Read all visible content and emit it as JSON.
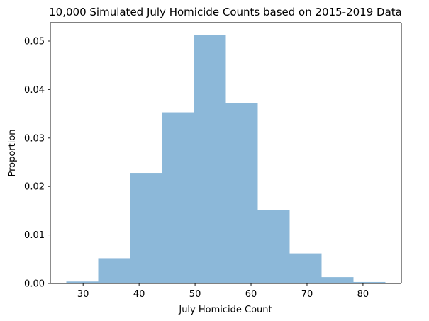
{
  "chart_data": {
    "type": "bar",
    "subtype": "histogram",
    "title": "10,000 Simulated July Homicide Counts based on 2015-2019 Data",
    "xlabel": "July Homicide Count",
    "ylabel": "Proportion",
    "bin_edges": [
      27.0,
      32.7,
      38.4,
      44.1,
      49.8,
      55.5,
      61.2,
      66.9,
      72.6,
      78.3,
      84.0
    ],
    "values": [
      0.0004,
      0.0052,
      0.0228,
      0.0353,
      0.0512,
      0.0372,
      0.0152,
      0.0062,
      0.0013,
      0.0003
    ],
    "xlim": [
      24.15,
      86.85
    ],
    "ylim": [
      0,
      0.0538
    ],
    "xticks": [
      30,
      40,
      50,
      60,
      70,
      80
    ],
    "xtick_labels": [
      "30",
      "40",
      "50",
      "60",
      "70",
      "80"
    ],
    "yticks": [
      0,
      0.01,
      0.02,
      0.03,
      0.04,
      0.05
    ],
    "ytick_labels": [
      "0.00",
      "0.01",
      "0.02",
      "0.03",
      "0.04",
      "0.05"
    ],
    "bar_color": "#8cb8d9",
    "grid": false,
    "legend": "none"
  }
}
